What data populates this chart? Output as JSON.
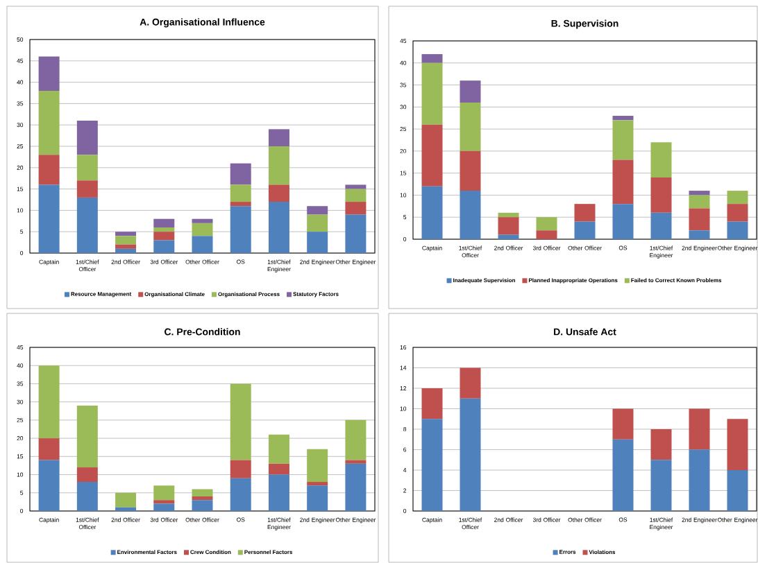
{
  "chart_data": [
    {
      "type": "bar",
      "stacked": true,
      "title": "A. Organisational Influence",
      "categories": [
        "Captain",
        "1st/Chief Officer",
        "2nd Officer",
        "3rd Officer",
        "Other Officer",
        "OS",
        "1st/Chief Engineer",
        "2nd Engineer",
        "Other Engineer"
      ],
      "series": [
        {
          "name": "Resource Management",
          "color": "#4f81bd",
          "values": [
            16,
            13,
            1,
            3,
            4,
            11,
            12,
            5,
            9
          ]
        },
        {
          "name": "Organisational  Climate",
          "color": "#c0504d",
          "values": [
            7,
            4,
            1,
            2,
            0,
            1,
            4,
            0,
            3
          ]
        },
        {
          "name": "Organisational  Process",
          "color": "#9bbb59",
          "values": [
            15,
            6,
            2,
            1,
            3,
            4,
            9,
            4,
            3
          ]
        },
        {
          "name": "Statutory Factors",
          "color": "#8064a2",
          "values": [
            8,
            8,
            1,
            2,
            1,
            5,
            4,
            2,
            1
          ]
        }
      ],
      "ylim": [
        0,
        50
      ],
      "yticks": [
        0,
        5,
        10,
        15,
        20,
        25,
        30,
        35,
        40,
        45,
        50
      ],
      "grid": "y",
      "legend": "bottom"
    },
    {
      "type": "bar",
      "stacked": true,
      "title": "B. Supervision",
      "categories": [
        "Captain",
        "1st/Chief Officer",
        "2nd Officer",
        "3rd Officer",
        "Other Officer",
        "OS",
        "1st/Chief Engineer",
        "2nd Engineer",
        "Other Engineer"
      ],
      "series": [
        {
          "name": "Inadequate Supervision",
          "color": "#4f81bd",
          "values": [
            12,
            11,
            1,
            0,
            4,
            8,
            6,
            2,
            4
          ]
        },
        {
          "name": "Planned Inappropriate  Operations",
          "color": "#c0504d",
          "values": [
            14,
            9,
            4,
            2,
            4,
            10,
            8,
            5,
            4
          ]
        },
        {
          "name": "Failed to Correct Known Problems",
          "color": "#9bbb59",
          "values": [
            14,
            11,
            1,
            3,
            0,
            9,
            8,
            3,
            3
          ]
        },
        {
          "color": "#8064a2",
          "values": [
            2,
            5,
            0,
            0,
            0,
            1,
            0,
            1,
            0
          ]
        }
      ],
      "ylim": [
        0,
        45
      ],
      "yticks": [
        0,
        5,
        10,
        15,
        20,
        25,
        30,
        35,
        40,
        45
      ],
      "grid": "y",
      "legend": "bottom"
    },
    {
      "type": "bar",
      "stacked": true,
      "title": "C. Pre-Condition",
      "categories": [
        "Captain",
        "1st/Chief Officer",
        "2nd Officer",
        "3rd Officer",
        "Other Officer",
        "OS",
        "1st/Chief Engineer",
        "2nd Engineer",
        "Other Engineer"
      ],
      "series": [
        {
          "name": "Environmental Factors",
          "color": "#4f81bd",
          "values": [
            14,
            8,
            1,
            2,
            3,
            9,
            10,
            7,
            13
          ]
        },
        {
          "name": "Crew Condition",
          "color": "#c0504d",
          "values": [
            6,
            4,
            0,
            1,
            1,
            5,
            3,
            1,
            1
          ]
        },
        {
          "name": "Personnel Factors",
          "color": "#9bbb59",
          "values": [
            20,
            17,
            4,
            4,
            2,
            21,
            8,
            9,
            11
          ]
        }
      ],
      "ylim": [
        0,
        45
      ],
      "yticks": [
        0,
        5,
        10,
        15,
        20,
        25,
        30,
        35,
        40,
        45
      ],
      "grid": "y",
      "legend": "bottom"
    },
    {
      "type": "bar",
      "stacked": true,
      "title": "D. Unsafe Act",
      "categories": [
        "Captain",
        "1st/Chief Officer",
        "2nd Officer",
        "3rd Officer",
        "Other Officer",
        "OS",
        "1st/Chief Engineer",
        "2nd Engineer",
        "Other Engineer"
      ],
      "series": [
        {
          "name": "Errors",
          "color": "#4f81bd",
          "values": [
            9,
            11,
            0,
            0,
            0,
            7,
            5,
            6,
            4
          ]
        },
        {
          "name": "Violations",
          "color": "#c0504d",
          "values": [
            3,
            3,
            0,
            0,
            0,
            3,
            3,
            4,
            5
          ]
        }
      ],
      "ylim": [
        0,
        16
      ],
      "yticks": [
        0,
        2,
        4,
        6,
        8,
        10,
        12,
        14,
        16
      ],
      "grid": "y",
      "legend": "bottom"
    }
  ]
}
